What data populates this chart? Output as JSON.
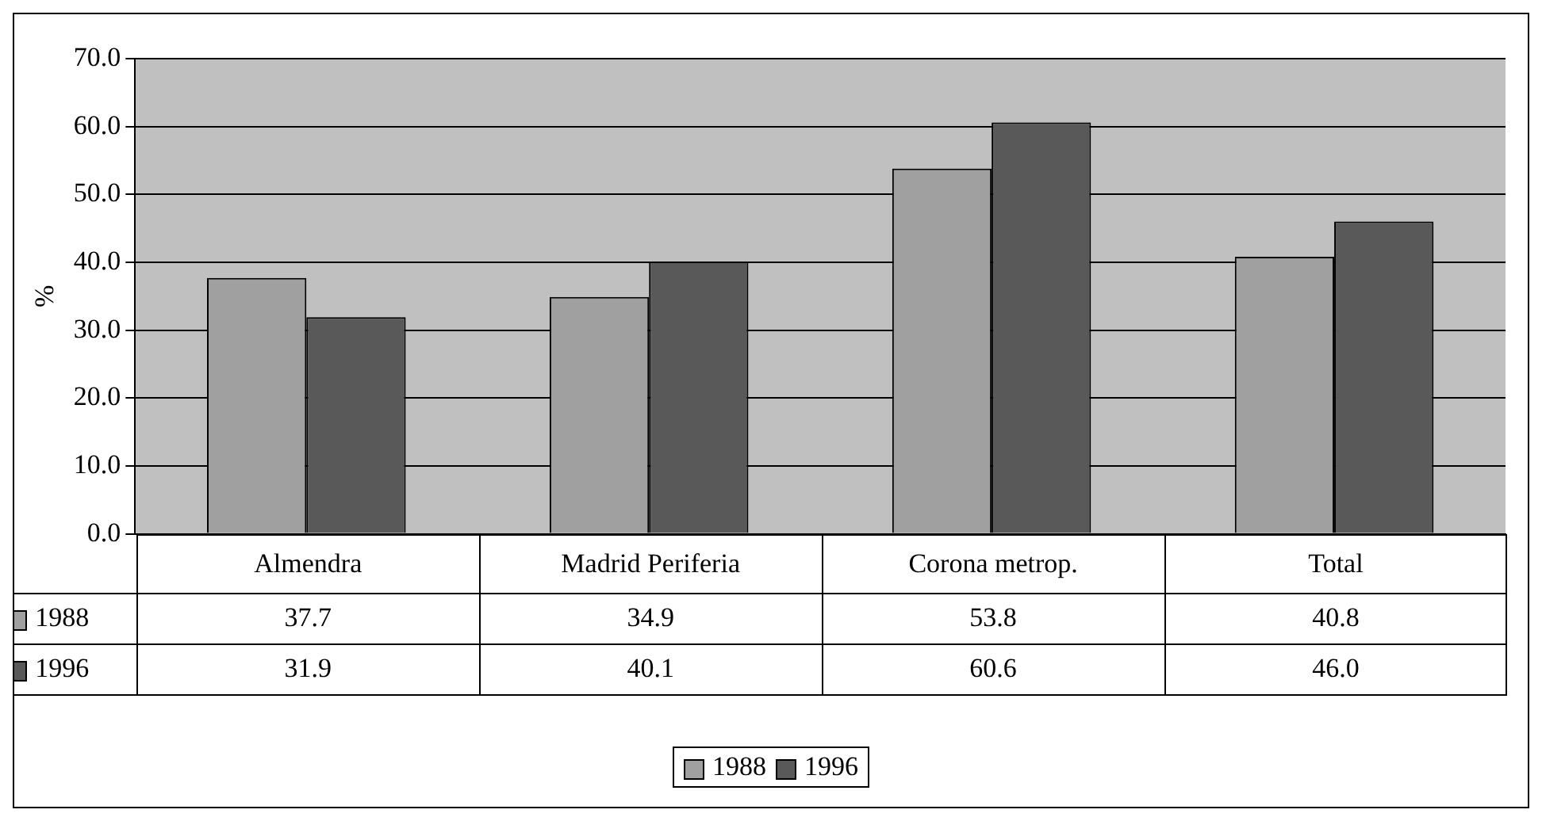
{
  "chart_data": {
    "type": "bar",
    "ylabel": "%",
    "categories": [
      "Almendra",
      "Madrid Periferia",
      "Corona metrop.",
      "Total"
    ],
    "series": [
      {
        "name": "1988",
        "color": "#a0a0a0",
        "values": [
          37.7,
          34.9,
          53.8,
          40.8
        ],
        "value_labels": [
          "37.7",
          "34.9",
          "53.8",
          "40.8"
        ]
      },
      {
        "name": "1996",
        "color": "#595959",
        "values": [
          31.9,
          40.1,
          60.6,
          46.0
        ],
        "value_labels": [
          "31.9",
          "40.1",
          "60.6",
          "46.0"
        ]
      }
    ],
    "ylim": [
      0,
      70
    ],
    "yticks": [
      {
        "value": 0,
        "label": "0.0"
      },
      {
        "value": 10,
        "label": "10.0"
      },
      {
        "value": 20,
        "label": "20.0"
      },
      {
        "value": 30,
        "label": "30.0"
      },
      {
        "value": 40,
        "label": "40.0"
      },
      {
        "value": 50,
        "label": "50.0"
      },
      {
        "value": 60,
        "label": "60.0"
      },
      {
        "value": 70,
        "label": "70.0"
      }
    ],
    "grid": "y",
    "legend": "bottom"
  }
}
